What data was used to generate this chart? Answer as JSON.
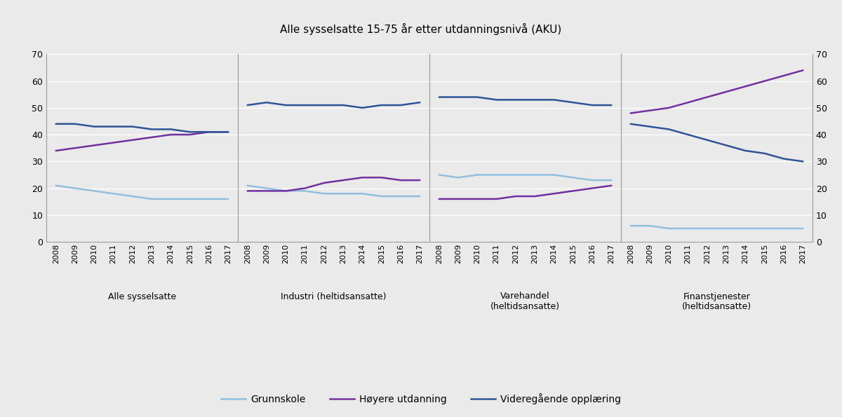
{
  "title": "Alle sysselsatte 15-75 år etter utdanningsnivå (AKU)",
  "years": [
    2008,
    2009,
    2010,
    2011,
    2012,
    2013,
    2014,
    2015,
    2016,
    2017
  ],
  "subplots": [
    {
      "label": "Alle sysselsatte",
      "label_multiline": false,
      "grunnskole": [
        21,
        20,
        19,
        18,
        17,
        16,
        16,
        16,
        16,
        16
      ],
      "hoyere": [
        34,
        35,
        36,
        37,
        38,
        39,
        40,
        40,
        41,
        41
      ],
      "videregaende": [
        44,
        44,
        43,
        43,
        43,
        42,
        42,
        41,
        41,
        41
      ]
    },
    {
      "label": "Industri (heltidsansatte)",
      "label_multiline": false,
      "grunnskole": [
        21,
        20,
        19,
        19,
        18,
        18,
        18,
        17,
        17,
        17
      ],
      "hoyere": [
        19,
        19,
        19,
        20,
        22,
        23,
        24,
        24,
        23,
        23
      ],
      "videregaende": [
        51,
        52,
        51,
        51,
        51,
        51,
        50,
        51,
        51,
        52
      ]
    },
    {
      "label": "Varehandel\n(heltidsansatte)",
      "label_multiline": true,
      "grunnskole": [
        25,
        24,
        25,
        25,
        25,
        25,
        25,
        24,
        23,
        23
      ],
      "hoyere": [
        16,
        16,
        16,
        16,
        17,
        17,
        18,
        19,
        20,
        21
      ],
      "videregaende": [
        54,
        54,
        54,
        53,
        53,
        53,
        53,
        52,
        51,
        51
      ]
    },
    {
      "label": "Finanstjenester\n(heltidsansatte)",
      "label_multiline": true,
      "grunnskole": [
        6,
        6,
        5,
        5,
        5,
        5,
        5,
        5,
        5,
        5
      ],
      "hoyere": [
        48,
        49,
        50,
        52,
        54,
        56,
        58,
        60,
        62,
        64
      ],
      "videregaende": [
        44,
        43,
        42,
        40,
        38,
        36,
        34,
        33,
        31,
        30
      ]
    }
  ],
  "colors": {
    "grunnskole": "#92C0DC",
    "hoyere": "#7030A0",
    "videregaende": "#2F5496"
  },
  "ylim": [
    0,
    70
  ],
  "yticks": [
    0,
    10,
    20,
    30,
    40,
    50,
    60,
    70
  ],
  "legend_labels": [
    "Grunnskole",
    "Høyere utdanning",
    "Videregående opplæring"
  ],
  "background_color": "#EAEAEA",
  "plot_bg_color": "#EAEAEA",
  "line_width": 1.8
}
